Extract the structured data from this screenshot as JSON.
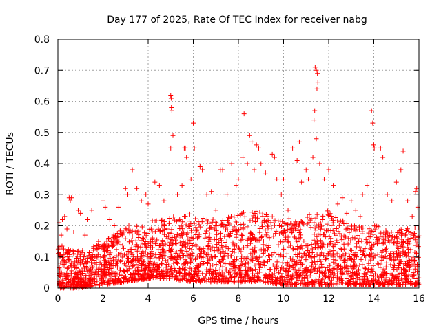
{
  "chart_data": {
    "type": "scatter",
    "title": "Day 177 of 2025, Rate Of TEC Index for receiver nabg",
    "xlabel": "GPS time / hours",
    "ylabel": "ROTI / TECUs",
    "xlim": [
      0,
      16
    ],
    "ylim": [
      0,
      0.8
    ],
    "xticks": [
      0,
      2,
      4,
      6,
      8,
      10,
      12,
      14,
      16
    ],
    "yticks": [
      0,
      0.1,
      0.2,
      0.3,
      0.4,
      0.5,
      0.6,
      0.7,
      0.8
    ],
    "grid": true,
    "marker": "+",
    "series": [
      {
        "name": "ROTI",
        "color": "#ff0000",
        "points": [
          [
            0.05,
            0.21
          ],
          [
            0.15,
            0.17
          ],
          [
            0.2,
            0.22
          ],
          [
            0.3,
            0.23
          ],
          [
            0.4,
            0.19
          ],
          [
            0.5,
            0.29
          ],
          [
            0.55,
            0.28
          ],
          [
            0.6,
            0.29
          ],
          [
            0.7,
            0.18
          ],
          [
            0.9,
            0.25
          ],
          [
            1.0,
            0.24
          ],
          [
            1.2,
            0.17
          ],
          [
            1.3,
            0.22
          ],
          [
            1.5,
            0.25
          ],
          [
            1.8,
            0.15
          ],
          [
            2.0,
            0.28
          ],
          [
            2.1,
            0.26
          ],
          [
            2.3,
            0.22
          ],
          [
            2.5,
            0.2
          ],
          [
            2.7,
            0.26
          ],
          [
            3.0,
            0.32
          ],
          [
            3.1,
            0.3
          ],
          [
            3.3,
            0.38
          ],
          [
            3.5,
            0.32
          ],
          [
            3.7,
            0.28
          ],
          [
            3.9,
            0.3
          ],
          [
            4.0,
            0.27
          ],
          [
            4.3,
            0.34
          ],
          [
            4.5,
            0.33
          ],
          [
            4.7,
            0.28
          ],
          [
            5.0,
            0.62
          ],
          [
            5.02,
            0.61
          ],
          [
            5.03,
            0.58
          ],
          [
            5.05,
            0.57
          ],
          [
            5.1,
            0.49
          ],
          [
            5.0,
            0.45
          ],
          [
            5.3,
            0.3
          ],
          [
            5.5,
            0.33
          ],
          [
            5.6,
            0.45
          ],
          [
            5.65,
            0.45
          ],
          [
            5.7,
            0.42
          ],
          [
            5.9,
            0.35
          ],
          [
            6.0,
            0.53
          ],
          [
            6.05,
            0.45
          ],
          [
            6.3,
            0.39
          ],
          [
            6.4,
            0.38
          ],
          [
            6.6,
            0.3
          ],
          [
            6.8,
            0.31
          ],
          [
            7.0,
            0.25
          ],
          [
            7.2,
            0.38
          ],
          [
            7.3,
            0.38
          ],
          [
            7.5,
            0.3
          ],
          [
            7.7,
            0.4
          ],
          [
            7.9,
            0.33
          ],
          [
            8.0,
            0.35
          ],
          [
            8.2,
            0.42
          ],
          [
            8.25,
            0.56
          ],
          [
            8.4,
            0.4
          ],
          [
            8.5,
            0.49
          ],
          [
            8.6,
            0.47
          ],
          [
            8.7,
            0.38
          ],
          [
            8.8,
            0.46
          ],
          [
            8.9,
            0.45
          ],
          [
            9.0,
            0.4
          ],
          [
            9.2,
            0.37
          ],
          [
            9.5,
            0.43
          ],
          [
            9.6,
            0.42
          ],
          [
            9.7,
            0.35
          ],
          [
            9.9,
            0.3
          ],
          [
            10.0,
            0.35
          ],
          [
            10.2,
            0.25
          ],
          [
            10.4,
            0.45
          ],
          [
            10.6,
            0.41
          ],
          [
            10.7,
            0.47
          ],
          [
            10.8,
            0.34
          ],
          [
            11.0,
            0.38
          ],
          [
            11.1,
            0.35
          ],
          [
            11.3,
            0.42
          ],
          [
            11.35,
            0.54
          ],
          [
            11.38,
            0.57
          ],
          [
            11.4,
            0.71
          ],
          [
            11.45,
            0.7
          ],
          [
            11.5,
            0.69
          ],
          [
            11.52,
            0.66
          ],
          [
            11.48,
            0.64
          ],
          [
            11.45,
            0.48
          ],
          [
            11.6,
            0.4
          ],
          [
            11.8,
            0.35
          ],
          [
            12.0,
            0.38
          ],
          [
            12.2,
            0.33
          ],
          [
            12.4,
            0.27
          ],
          [
            12.6,
            0.29
          ],
          [
            12.8,
            0.24
          ],
          [
            13.0,
            0.28
          ],
          [
            13.2,
            0.25
          ],
          [
            13.4,
            0.23
          ],
          [
            13.5,
            0.3
          ],
          [
            13.7,
            0.33
          ],
          [
            13.9,
            0.57
          ],
          [
            13.95,
            0.53
          ],
          [
            14.0,
            0.46
          ],
          [
            14.02,
            0.45
          ],
          [
            14.3,
            0.45
          ],
          [
            14.4,
            0.42
          ],
          [
            14.6,
            0.3
          ],
          [
            14.8,
            0.28
          ],
          [
            15.0,
            0.34
          ],
          [
            15.2,
            0.38
          ],
          [
            15.3,
            0.44
          ],
          [
            15.5,
            0.28
          ],
          [
            15.7,
            0.23
          ],
          [
            15.85,
            0.31
          ],
          [
            15.9,
            0.32
          ],
          [
            15.95,
            0.26
          ]
        ],
        "band": {
          "description": "dense noise of ROTI points",
          "x": [
            0,
            1,
            2,
            3,
            4,
            5,
            6,
            7,
            8,
            9,
            10,
            11,
            12,
            13,
            14,
            15,
            16
          ],
          "low": [
            0.0,
            0.0,
            0.01,
            0.02,
            0.03,
            0.03,
            0.02,
            0.02,
            0.02,
            0.02,
            0.01,
            0.01,
            0.01,
            0.01,
            0.01,
            0.01,
            0.01
          ],
          "high": [
            0.14,
            0.12,
            0.15,
            0.2,
            0.22,
            0.23,
            0.24,
            0.22,
            0.24,
            0.26,
            0.22,
            0.24,
            0.25,
            0.2,
            0.2,
            0.19,
            0.2
          ]
        }
      }
    ]
  }
}
